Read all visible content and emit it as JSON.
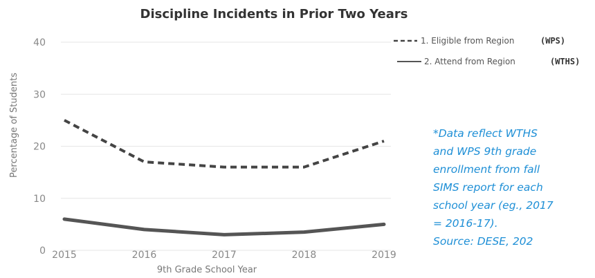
{
  "chart_data": {
    "type": "line",
    "title": "Discipline Incidents in Prior Two Years",
    "xlabel": "9th Grade School Year",
    "ylabel": "Percentage of Students",
    "x": [
      "2015",
      "2016",
      "2017",
      "2018",
      "2019"
    ],
    "ylim": [
      0,
      40
    ],
    "yticks": [
      "0",
      "10",
      "20",
      "30",
      "40"
    ],
    "grid": true,
    "legend_position": "top-right",
    "series": [
      {
        "name": "1. Eligible from Region",
        "tag": "(WPS)",
        "style": "dashed",
        "color": "#444444",
        "values": [
          25,
          17,
          16,
          16,
          21
        ]
      },
      {
        "name": "2. Attend from Region",
        "tag": "(WTHS)",
        "style": "solid",
        "color": "#555555",
        "values": [
          6,
          4,
          3,
          3.5,
          5
        ]
      }
    ]
  },
  "note": {
    "lines": [
      "*Data reflect WTHS",
      "and WPS 9th grade",
      "enrollment from fall",
      "SIMS report for each",
      "school year (eg., 2017",
      "= 2016-17).",
      "Source: DESE, 202"
    ],
    "color": "#1e8fd6"
  }
}
